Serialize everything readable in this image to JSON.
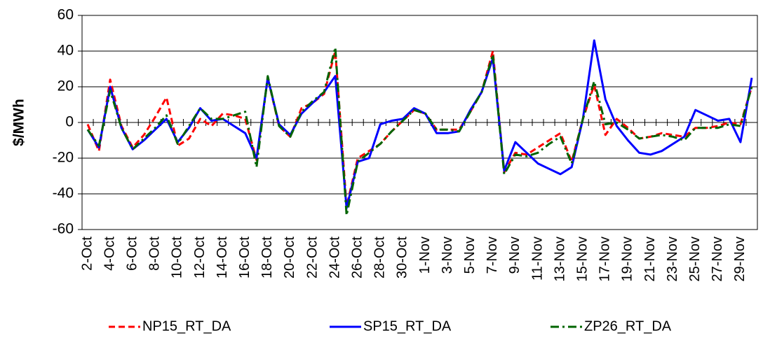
{
  "chart_data": {
    "type": "line",
    "y_label": "$/MWh",
    "categories": [
      "2-Oct",
      null,
      "4-Oct",
      null,
      "6-Oct",
      null,
      "8-Oct",
      null,
      "10-Oct",
      null,
      "12-Oct",
      null,
      "14-Oct",
      null,
      "16-Oct",
      null,
      "18-Oct",
      null,
      "20-Oct",
      null,
      "22-Oct",
      null,
      "24-Oct",
      null,
      "26-Oct",
      null,
      "28-Oct",
      null,
      "30-Oct",
      null,
      "1-Nov",
      null,
      "3-Nov",
      null,
      "5-Nov",
      null,
      "7-Nov",
      null,
      "9-Nov",
      null,
      "11-Nov",
      null,
      "13-Nov",
      null,
      "15-Nov",
      null,
      "17-Nov",
      null,
      "19-Nov",
      null,
      "21-Nov",
      null,
      "23-Nov",
      null,
      "25-Nov",
      null,
      "27-Nov",
      null,
      "29-Nov",
      null
    ],
    "series": [
      {
        "name": "NP15_RT_DA",
        "color": "#ff0000",
        "dash": "dashed",
        "values": [
          -1,
          -16,
          24,
          -2,
          -14,
          -7,
          3,
          14,
          -13,
          -9,
          2,
          -2,
          5,
          4,
          2,
          -21,
          25,
          -2,
          -8,
          8,
          11,
          16,
          40,
          -47,
          -20,
          -16,
          -12,
          -5,
          1,
          7,
          5,
          -4,
          -4,
          -4,
          6,
          17,
          40,
          -28,
          -17,
          -18,
          -14,
          -10,
          -6,
          -22,
          2,
          21,
          -7,
          2,
          -3,
          -9,
          -8,
          -6,
          -7,
          -8,
          -3,
          -3,
          -2,
          0,
          -1,
          20
        ]
      },
      {
        "name": "SP15_RT_DA",
        "color": "#0000ff",
        "dash": "solid",
        "values": [
          -4,
          -14,
          20,
          -3,
          -15,
          -10,
          -4,
          2,
          -11,
          -3,
          8,
          1,
          2,
          -2,
          -6,
          -20,
          25,
          -1,
          -7,
          5,
          11,
          17,
          26,
          -48,
          -22,
          -20,
          -1,
          1,
          2,
          8,
          5,
          -6,
          -6,
          -5,
          7,
          17,
          36,
          -27,
          -11,
          -17,
          -23,
          -26,
          -29,
          -25,
          2,
          46,
          13,
          -2,
          -10,
          -17,
          -18,
          -16,
          -12,
          -8,
          7,
          4,
          1,
          2,
          -11,
          25
        ]
      },
      {
        "name": "ZP26_RT_DA",
        "color": "#006400",
        "dash": "dashdot",
        "values": [
          -4,
          -13,
          18,
          -3,
          -15,
          -9,
          -3,
          4,
          -12,
          -2,
          8,
          2,
          2,
          4,
          6,
          -25,
          26,
          -2,
          -8,
          6,
          12,
          17,
          42,
          -52,
          -22,
          -17,
          -12,
          -5,
          1,
          7,
          5,
          -4,
          -4,
          -5,
          6,
          17,
          38,
          -29,
          -18,
          -19,
          -17,
          -12,
          -8,
          -23,
          2,
          23,
          -1,
          0,
          -4,
          -9,
          -8,
          -7,
          -8,
          -10,
          -3,
          -3,
          -3,
          -1,
          -2,
          20
        ]
      }
    ],
    "ylim": [
      -60,
      60
    ],
    "yticks": [
      -60,
      -40,
      -20,
      0,
      20,
      40,
      60
    ],
    "grid": true,
    "legend": "bottom"
  }
}
